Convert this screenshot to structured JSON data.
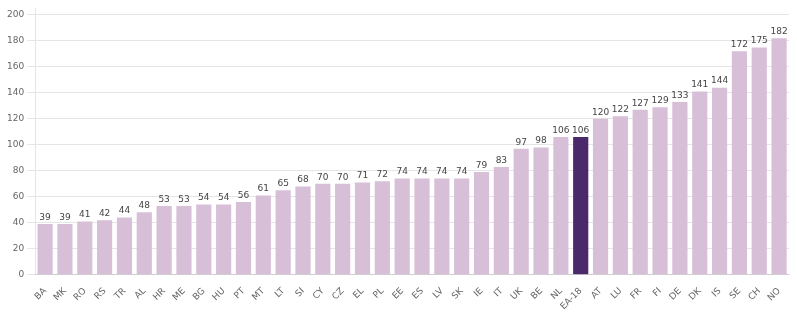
{
  "chart_data": {
    "type": "bar",
    "categories": [
      "BA",
      "MK",
      "RO",
      "RS",
      "TR",
      "AL",
      "HR",
      "ME",
      "BG",
      "HU",
      "PT",
      "MT",
      "LT",
      "SI",
      "CY",
      "CZ",
      "EL",
      "PL",
      "EE",
      "ES",
      "LV",
      "SK",
      "IE",
      "IT",
      "UK",
      "BE",
      "NL",
      "EA-18",
      "AT",
      "LU",
      "FR",
      "FI",
      "DE",
      "DK",
      "IS",
      "SE",
      "CH",
      "NO"
    ],
    "values": [
      39,
      39,
      41,
      42,
      44,
      48,
      53,
      53,
      54,
      54,
      56,
      61,
      65,
      68,
      70,
      70,
      71,
      72,
      74,
      74,
      74,
      74,
      79,
      83,
      97,
      98,
      106,
      106,
      120,
      122,
      127,
      129,
      133,
      141,
      144,
      172,
      175,
      182
    ],
    "colors": [
      "#d8bfd8",
      "#d8bfd8",
      "#d8bfd8",
      "#d8bfd8",
      "#d8bfd8",
      "#d8bfd8",
      "#d8bfd8",
      "#d8bfd8",
      "#d8bfd8",
      "#d8bfd8",
      "#d8bfd8",
      "#d8bfd8",
      "#d8bfd8",
      "#d8bfd8",
      "#d8bfd8",
      "#d8bfd8",
      "#d8bfd8",
      "#d8bfd8",
      "#d8bfd8",
      "#d8bfd8",
      "#d8bfd8",
      "#d8bfd8",
      "#d8bfd8",
      "#d8bfd8",
      "#d8bfd8",
      "#d8bfd8",
      "#d8bfd8",
      "#4b2a6b",
      "#d8bfd8",
      "#d8bfd8",
      "#d8bfd8",
      "#d8bfd8",
      "#d8bfd8",
      "#d8bfd8",
      "#d8bfd8",
      "#d8bfd8",
      "#d8bfd8",
      "#d8bfd8"
    ],
    "ylim": [
      0,
      205
    ],
    "yticks": [
      0,
      20,
      40,
      60,
      80,
      100,
      120,
      140,
      160,
      180,
      200
    ],
    "grid": true,
    "data_labels": true
  }
}
